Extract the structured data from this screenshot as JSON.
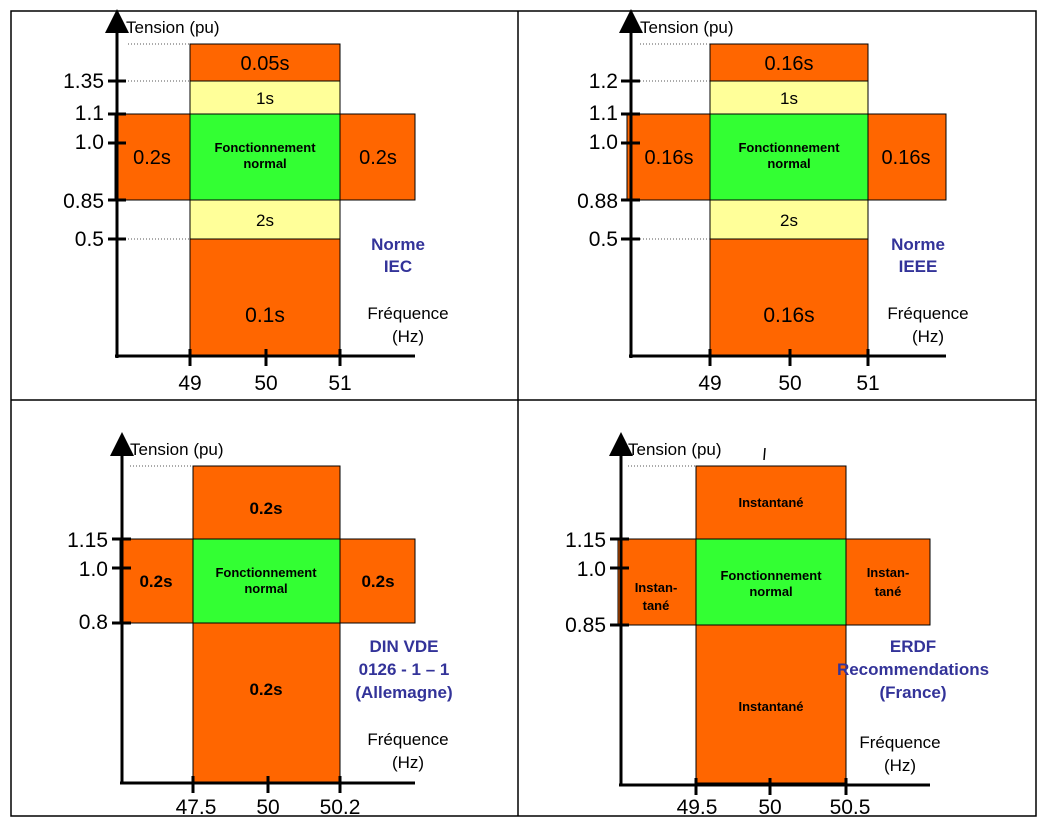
{
  "colors": {
    "orange": "#FF6600",
    "yellow": "#FFFF99",
    "green": "#33FF33",
    "norm_text": "#333399"
  },
  "panels": [
    {
      "id": "iec",
      "axis_title_y": "Tension (pu)",
      "axis_title_x_1": "Fréquence",
      "axis_title_x_2": "(Hz)",
      "y_ticks": [
        "1.35",
        "1.1",
        "1.0",
        "0.85",
        "0.5"
      ],
      "x_ticks": [
        "49",
        "50",
        "51"
      ],
      "norm_lines": [
        "Norme",
        "IEC"
      ],
      "top_time": "0.05s",
      "upper_mid_time": "1s",
      "left_time": "0.2s",
      "normal_lines": [
        "Fonctionnement",
        "normal"
      ],
      "right_time": "0.2s",
      "lower_mid_time": "2s",
      "bottom_time": "0.1s"
    },
    {
      "id": "ieee",
      "axis_title_y": "Tension (pu)",
      "axis_title_x_1": "Fréquence",
      "axis_title_x_2": "(Hz)",
      "y_ticks": [
        "1.2",
        "1.1",
        "1.0",
        "0.88",
        "0.5"
      ],
      "x_ticks": [
        "49",
        "50",
        "51"
      ],
      "norm_lines": [
        "Norme",
        "IEEE"
      ],
      "top_time": "0.16s",
      "upper_mid_time": "1s",
      "left_time": "0.16s",
      "normal_lines": [
        "Fonctionnement",
        "normal"
      ],
      "right_time": "0.16s",
      "lower_mid_time": "2s",
      "bottom_time": "0.16s"
    },
    {
      "id": "din",
      "axis_title_y": "Tension (pu)",
      "axis_title_x_1": "Fréquence",
      "axis_title_x_2": "(Hz)",
      "y_ticks": [
        "1.15",
        "1.0",
        "0.8"
      ],
      "x_ticks": [
        "47.5",
        "50",
        "50.2"
      ],
      "norm_lines": [
        "DIN VDE",
        "0126 - 1 – 1",
        "(Allemagne)"
      ],
      "top_time": "0.2s",
      "left_time": "0.2s",
      "normal_lines": [
        "Fonctionnement",
        "normal"
      ],
      "right_time": "0.2s",
      "bottom_time": "0.2s"
    },
    {
      "id": "erdf",
      "axis_title_y": "Tension (pu)",
      "axis_title_x_1": "Fréquence",
      "axis_title_x_2": "(Hz)",
      "y_ticks": [
        "1.15",
        "1.0",
        "0.85"
      ],
      "x_ticks": [
        "49.5",
        "50",
        "50.5"
      ],
      "norm_lines": [
        "ERDF",
        "Recommendations",
        "(France)"
      ],
      "top_time": "Instantané",
      "left_time_lines": [
        "Instan-",
        "tané"
      ],
      "normal_lines": [
        "Fonctionnement",
        "normal"
      ],
      "right_time_lines": [
        "Instan-",
        "tané"
      ],
      "bottom_time": "Instantané"
    }
  ]
}
